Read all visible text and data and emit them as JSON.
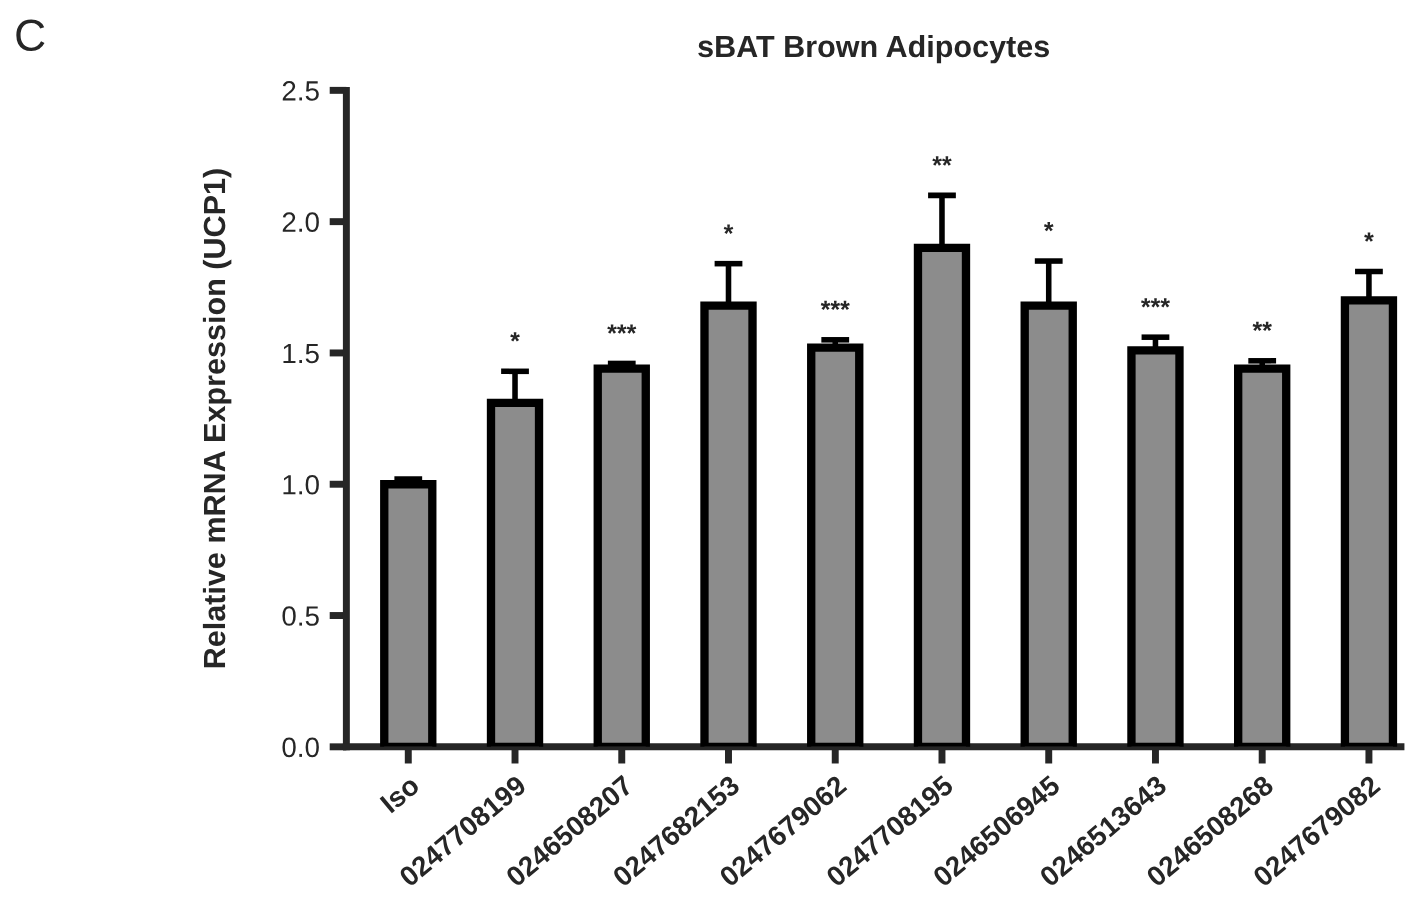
{
  "chart_data": {
    "type": "bar",
    "title": "sBAT Brown Adipocytes",
    "ylabel": "Relative mRNA Expression (UCP1)",
    "categories": [
      "Iso",
      "0247708199",
      "0246508207",
      "0247682153",
      "0247679062",
      "0247708195",
      "0246506945",
      "0246513643",
      "0246508268",
      "0247679082"
    ],
    "values": [
      1.0,
      1.31,
      1.44,
      1.68,
      1.52,
      1.9,
      1.68,
      1.51,
      1.44,
      1.7
    ],
    "errors": [
      0.02,
      0.12,
      0.02,
      0.16,
      0.03,
      0.2,
      0.17,
      0.05,
      0.03,
      0.11
    ],
    "color": "#8c8c8c",
    "ylim": [
      0,
      2.5
    ],
    "yticks": [
      {
        "value": 0,
        "label": "0.0"
      },
      0.5,
      {
        "value": 1,
        "label": "1.0"
      },
      1.5,
      {
        "value": 2,
        "label": "2.0"
      },
      2.5
    ],
    "grid": false,
    "legend": false,
    "annotations": [
      "C",
      {
        "text": "*",
        "x": "0247708199",
        "y": 1.43
      },
      {
        "text": "***",
        "x": "0246508207",
        "y": 1.46
      },
      {
        "text": "*",
        "x": "0247682153",
        "y": 1.84
      },
      {
        "text": "***",
        "x": "0247679062",
        "y": 1.55
      },
      {
        "text": "**",
        "x": "0247708195",
        "y": 2.1
      },
      {
        "text": "*",
        "x": "0246506945",
        "y": 1.85
      },
      {
        "text": "***",
        "x": "0246513643",
        "y": 1.56
      },
      {
        "text": "**",
        "x": "0246508268",
        "y": 1.47
      },
      {
        "text": "*",
        "x": "0247679082",
        "y": 1.81
      }
    ]
  }
}
